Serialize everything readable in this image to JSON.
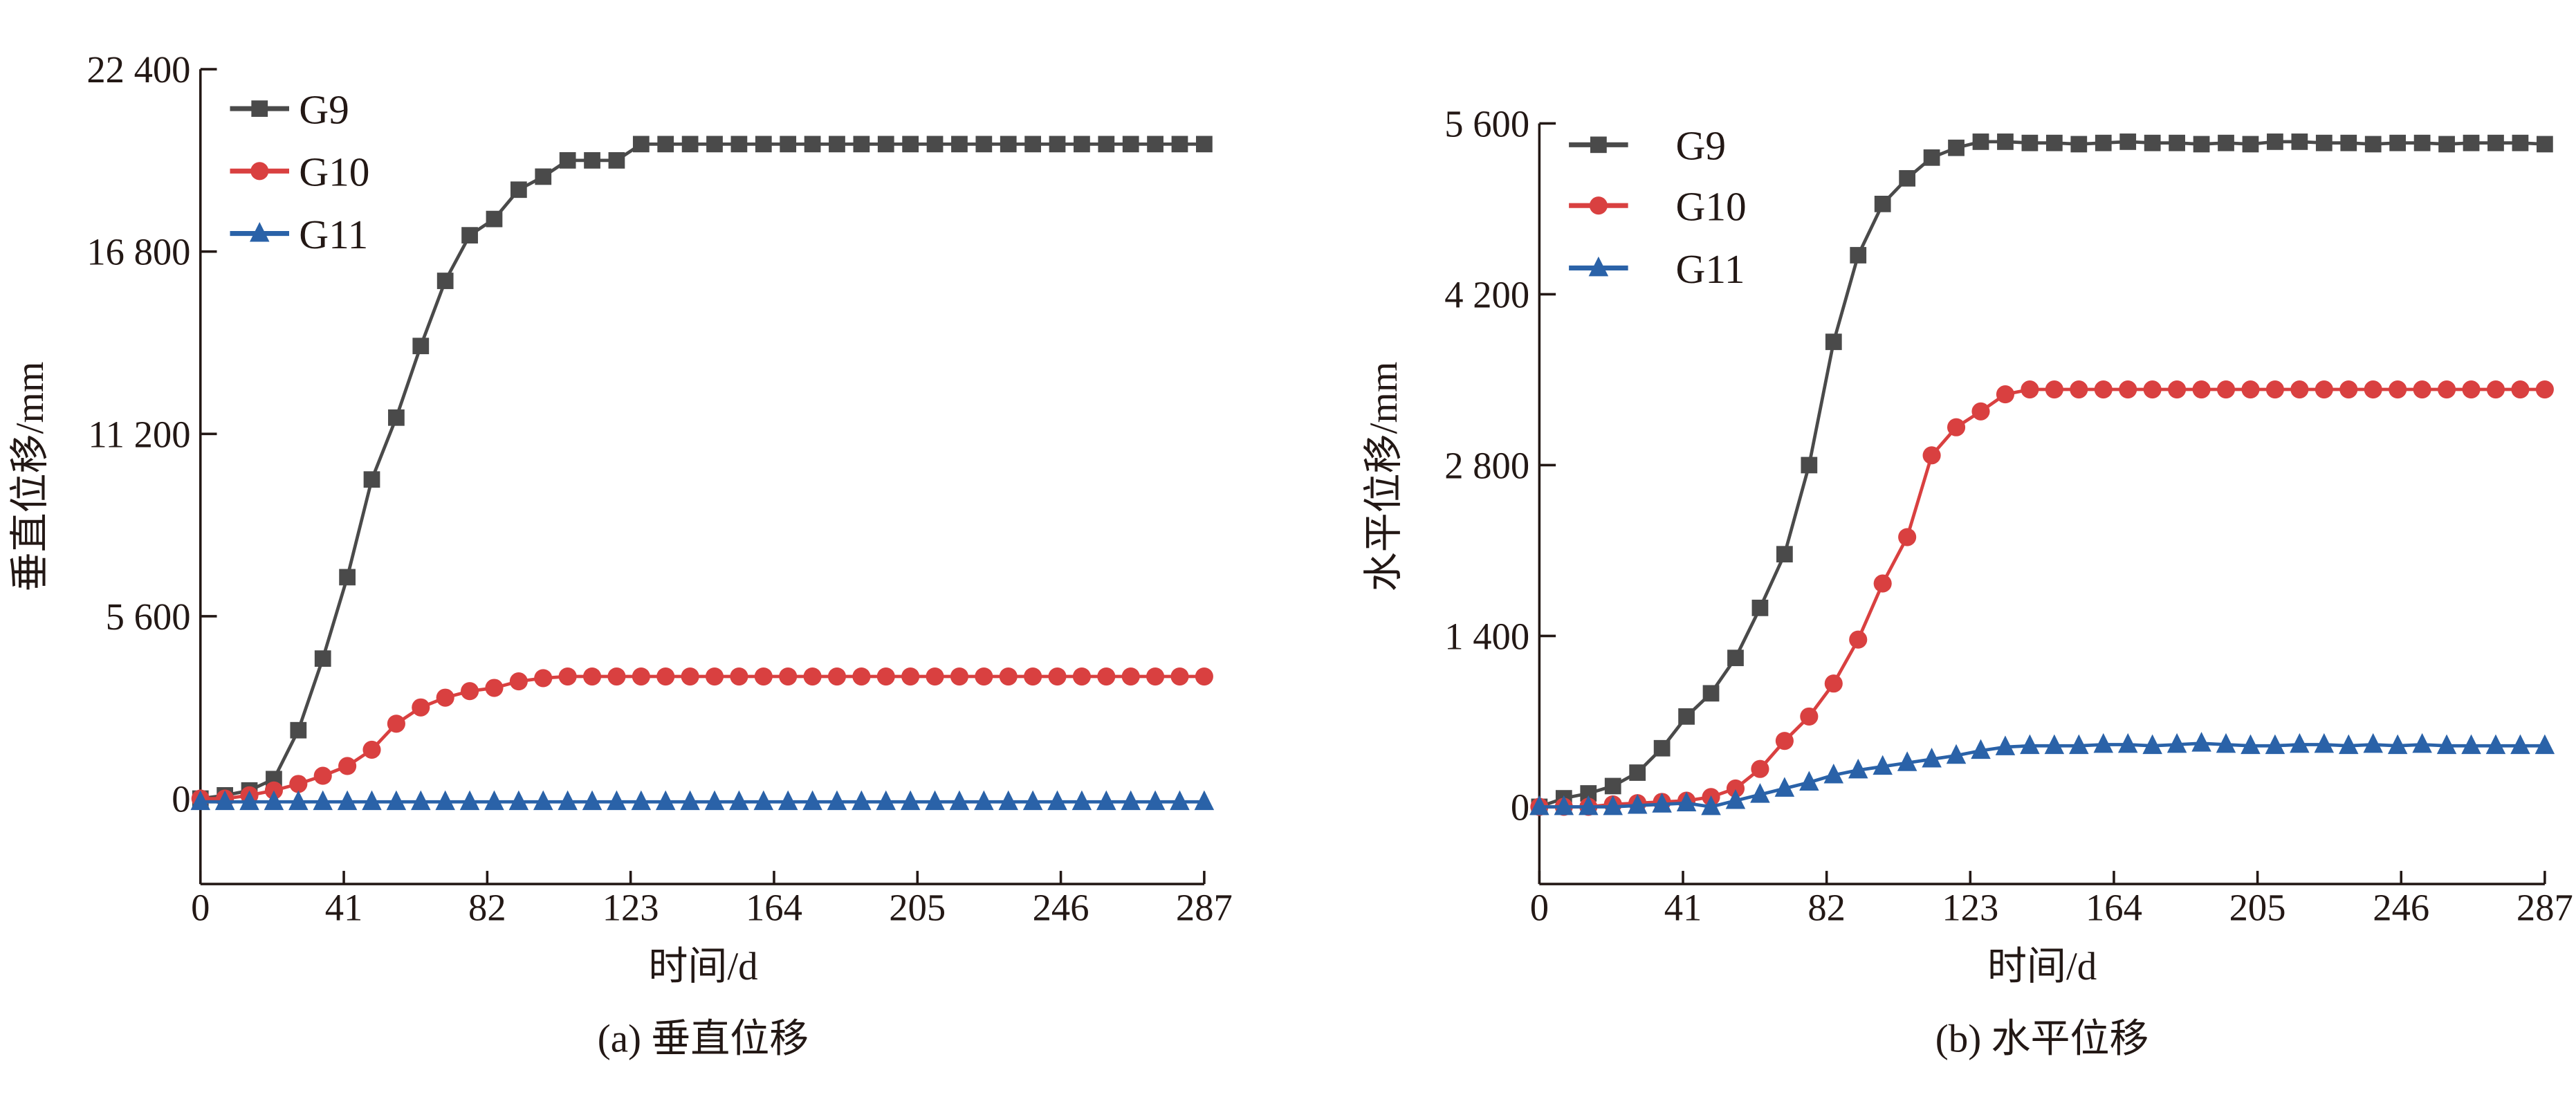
{
  "chart_data": [
    {
      "type": "line",
      "caption": "(a) 垂直位移",
      "xlabel": "时间/d",
      "ylabel": "垂直位移/mm",
      "xlim": [
        0,
        287
      ],
      "ylim": [
        -2623,
        22400
      ],
      "xticks": [
        0,
        41,
        82,
        123,
        164,
        205,
        246,
        287
      ],
      "xtick_labels": [
        "0",
        "41",
        "82",
        "123",
        "164",
        "205",
        "246",
        "287"
      ],
      "yticks": [
        0,
        5600,
        11200,
        16800,
        22400
      ],
      "ytick_labels": [
        "0",
        "5 600",
        "11 200",
        "16 800",
        "22 400"
      ],
      "grid": false,
      "legend": "top-left",
      "x": [
        0,
        7,
        14,
        21,
        28,
        35,
        42,
        49,
        56,
        63,
        70,
        77,
        84,
        91,
        98,
        105,
        112,
        119,
        126,
        133,
        140,
        147,
        154,
        161,
        168,
        175,
        182,
        189,
        196,
        203,
        210,
        217,
        224,
        231,
        238,
        245,
        252,
        259,
        266,
        273,
        280,
        287
      ],
      "series": [
        {
          "name": "G9",
          "color": "#4a4a4a",
          "marker": "square",
          "values": [
            0,
            100,
            250,
            600,
            2100,
            4300,
            6800,
            9800,
            11700,
            13900,
            15900,
            17300,
            17800,
            18700,
            19100,
            19600,
            19600,
            19600,
            20100,
            20100,
            20100,
            20100,
            20100,
            20100,
            20100,
            20100,
            20100,
            20100,
            20100,
            20100,
            20100,
            20100,
            20100,
            20100,
            20100,
            20100,
            20100,
            20100,
            20100,
            20100,
            20100,
            20100
          ]
        },
        {
          "name": "G10",
          "color": "#d94040",
          "marker": "circle",
          "values": [
            0,
            0,
            100,
            250,
            450,
            700,
            1000,
            1500,
            2300,
            2800,
            3100,
            3300,
            3400,
            3600,
            3700,
            3750,
            3750,
            3750,
            3750,
            3750,
            3750,
            3750,
            3750,
            3750,
            3750,
            3750,
            3750,
            3750,
            3750,
            3750,
            3750,
            3750,
            3750,
            3750,
            3750,
            3750,
            3750,
            3750,
            3750,
            3750,
            3750,
            3750
          ]
        },
        {
          "name": "G11",
          "color": "#2a62a8",
          "marker": "triangle",
          "values": [
            -100,
            -100,
            -100,
            -100,
            -100,
            -100,
            -100,
            -100,
            -100,
            -100,
            -100,
            -100,
            -100,
            -100,
            -100,
            -100,
            -100,
            -100,
            -100,
            -100,
            -100,
            -100,
            -100,
            -100,
            -100,
            -100,
            -100,
            -100,
            -100,
            -100,
            -100,
            -100,
            -100,
            -100,
            -100,
            -100,
            -100,
            -100,
            -100,
            -100,
            -100,
            -100
          ]
        }
      ]
    },
    {
      "type": "line",
      "caption": "(b) 水平位移",
      "xlabel": "时间/d",
      "ylabel": "水平位移/mm",
      "xlim": [
        0,
        287
      ],
      "ylim": [
        -633,
        5600
      ],
      "xticks": [
        0,
        41,
        82,
        123,
        164,
        205,
        246,
        287
      ],
      "xtick_labels": [
        "0",
        "41",
        "82",
        "123",
        "164",
        "205",
        "246",
        "287"
      ],
      "yticks": [
        0,
        1400,
        2800,
        4200,
        5600
      ],
      "ytick_labels": [
        "0",
        "1 400",
        "2 800",
        "4 200",
        "5 600"
      ],
      "grid": false,
      "legend": "top-left",
      "x": [
        0,
        7,
        14,
        21,
        28,
        35,
        42,
        49,
        56,
        63,
        70,
        77,
        84,
        91,
        98,
        105,
        112,
        119,
        126,
        133,
        140,
        147,
        154,
        161,
        168,
        175,
        182,
        189,
        196,
        203,
        210,
        217,
        224,
        231,
        238,
        245,
        252,
        259,
        266,
        273,
        280,
        287
      ],
      "series": [
        {
          "name": "G9",
          "color": "#4a4a4a",
          "marker": "square",
          "values": [
            0,
            70,
            110,
            170,
            280,
            480,
            740,
            930,
            1220,
            1630,
            2070,
            2800,
            3810,
            4520,
            4940,
            5150,
            5320,
            5400,
            5450,
            5450,
            5440,
            5440,
            5430,
            5440,
            5450,
            5440,
            5440,
            5430,
            5440,
            5430,
            5450,
            5450,
            5440,
            5440,
            5430,
            5440,
            5440,
            5430,
            5440,
            5440,
            5440,
            5430
          ]
        },
        {
          "name": "G10",
          "color": "#d94040",
          "marker": "circle",
          "values": [
            0,
            0,
            0,
            20,
            30,
            40,
            50,
            80,
            150,
            310,
            540,
            740,
            1010,
            1370,
            1830,
            2210,
            2880,
            3110,
            3240,
            3380,
            3420,
            3420,
            3420,
            3420,
            3420,
            3420,
            3420,
            3420,
            3420,
            3420,
            3420,
            3420,
            3420,
            3420,
            3420,
            3420,
            3420,
            3420,
            3420,
            3420,
            3420,
            3420
          ]
        },
        {
          "name": "G11",
          "color": "#2a62a8",
          "marker": "triangle",
          "values": [
            0,
            0,
            0,
            0,
            10,
            20,
            30,
            0,
            50,
            100,
            150,
            200,
            260,
            300,
            330,
            360,
            390,
            420,
            460,
            490,
            500,
            500,
            500,
            510,
            510,
            500,
            510,
            520,
            510,
            500,
            500,
            510,
            510,
            500,
            510,
            500,
            510,
            500,
            500,
            500,
            500,
            500
          ]
        }
      ]
    }
  ]
}
